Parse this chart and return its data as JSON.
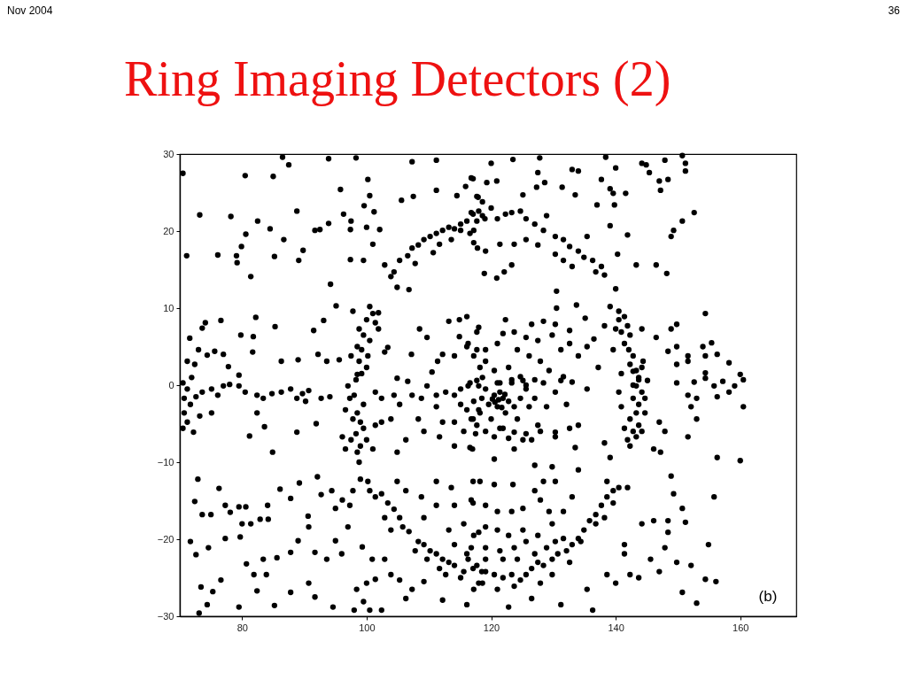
{
  "chart_data": {
    "type": "scatter",
    "title": "Ring Imaging Detectors (2)",
    "annotations": [
      "Nov 2004",
      "36",
      "(b)"
    ],
    "xlim": [
      70,
      169
    ],
    "ylim": [
      -30,
      30
    ],
    "xticks": [
      80,
      100,
      120,
      140,
      160
    ],
    "yticks": [
      -30,
      -20,
      -10,
      0,
      10,
      20,
      30
    ],
    "marker": "circle",
    "series": [
      {
        "color": "#000000",
        "x": [
          103.9,
          104.4,
          102.9,
          105.3,
          106.6,
          107.3,
          108.3,
          109.2,
          110.2,
          111.2,
          112.2,
          113.2,
          114.1,
          115.1,
          116.1,
          117.1,
          118.0,
          119.0,
          115.1,
          116.6,
          107.8,
          110.7,
          111.7,
          113.6,
          117.8,
          104.9,
          106.8,
          116.8,
          117.7,
          118.6,
          120.0,
          121.0,
          122.3,
          123.3,
          124.7,
          125.6,
          127.0,
          128.4,
          128.9,
          130.3,
          131.6,
          132.6,
          134.0,
          134.9,
          136.3,
          137.7,
          138.2,
          136.8,
          133.0,
          135.4,
          117.2,
          119.1,
          121.4,
          123.7,
          125.6,
          127.5,
          130.3,
          131.6,
          117.2,
          100.5,
          101.0,
          100.0,
          101.4,
          98.8,
          99.5,
          100.5,
          98.5,
          99.2,
          100.2,
          98.8,
          100.0,
          99.2,
          98.3,
          97.5,
          101.9,
          101.9,
          98.5,
          97.0,
          98.0,
          97.3,
          99.5,
          98.5,
          96.6,
          97.8,
          99.0,
          99.5,
          98.3,
          97.5,
          99.0,
          101.0,
          96.6,
          98.5,
          96.1,
          100.0,
          101.4,
          98.8
        ],
        "values": [
          14.1,
          14.7,
          15.6,
          16.2,
          16.8,
          17.8,
          18.2,
          18.9,
          19.3,
          19.7,
          20.1,
          20.5,
          20.3,
          20.9,
          21.3,
          22.2,
          22.6,
          21.6,
          20.1,
          19.7,
          15.8,
          17.2,
          18.3,
          18.9,
          17.8,
          12.7,
          12.4,
          22.4,
          21.3,
          22.0,
          23.0,
          21.6,
          22.2,
          22.4,
          22.6,
          21.6,
          20.9,
          20.1,
          22.0,
          19.3,
          18.9,
          18.0,
          17.4,
          16.6,
          16.2,
          15.4,
          14.3,
          14.7,
          15.4,
          19.3,
          18.5,
          17.4,
          18.3,
          18.3,
          18.9,
          18.2,
          17.0,
          16.2,
          20.1,
          10.2,
          9.3,
          8.5,
          8.1,
          7.3,
          6.5,
          5.8,
          5.0,
          4.6,
          3.8,
          3.1,
          2.3,
          1.5,
          0.7,
          3.8,
          7.3,
          9.4,
          1.4,
          -0.1,
          -1.3,
          -1.7,
          -2.5,
          -3.6,
          -3.2,
          -4.4,
          -4.8,
          -5.6,
          -6.3,
          -7.1,
          -7.9,
          -8.3,
          -8.3,
          -8.7,
          -6.7,
          -7.1,
          -5.2,
          -10.0
        ]
      },
      {
        "color": "#000000",
        "x": [
          139.1,
          140.5,
          141.4,
          141.9,
          140.9,
          142.3,
          141.4,
          142.1,
          142.8,
          142.3,
          143.3,
          143.7,
          142.8,
          140.5,
          140.0,
          144.2,
          138.2,
          139.6,
          140.9,
          144.2,
          144.4,
          142.8,
          143.7,
          143.3,
          144.2,
          142.8,
          143.7,
          143.3,
          142.3,
          143.7,
          142.8,
          143.3,
          142.3,
          141.9,
          144.2,
          141.4,
          144.7,
          140.9,
          140.5,
          145.1,
          144.7,
          100.5,
          101.4,
          102.4,
          103.4,
          104.4,
          102.9,
          105.3,
          105.8,
          106.8,
          108.3,
          109.2,
          110.2,
          111.2,
          112.2,
          113.2,
          114.1,
          115.6,
          117.1,
          118.5,
          111.7,
          115.1,
          118.0,
          103.9,
          107.8,
          109.7,
          112.7,
          116.3,
          117.7,
          119.1,
          120.5,
          121.9,
          123.3,
          124.7,
          125.6,
          126.5,
          127.5,
          128.4,
          129.8,
          130.7,
          132.1,
          133.0,
          134.0,
          134.9,
          135.8,
          136.8,
          137.7,
          138.6,
          139.6,
          140.5,
          141.9,
          138.6,
          139.6,
          136.8,
          134.4,
          131.6,
          128.9,
          127.0,
          124.2,
          121.9,
          119.1,
          118.6,
          121.0,
          123.7,
          117.2,
          129.8,
          132.6,
          138.2
        ],
        "values": [
          10.2,
          9.6,
          8.9,
          7.7,
          6.9,
          6.5,
          5.4,
          4.6,
          3.8,
          2.7,
          1.9,
          0.7,
          0.0,
          8.5,
          7.3,
          7.3,
          7.7,
          4.6,
          1.5,
          2.3,
          3.1,
          1.8,
          1.0,
          -0.1,
          -0.9,
          -1.7,
          -2.5,
          -3.6,
          -4.4,
          -5.2,
          -6.0,
          -6.7,
          -7.9,
          -7.1,
          -6.0,
          -5.6,
          -3.6,
          -2.8,
          -0.9,
          0.6,
          -1.7,
          -13.7,
          -14.5,
          -14.1,
          -15.3,
          -16.1,
          -17.2,
          -17.2,
          -18.4,
          -19.0,
          -20.3,
          -20.7,
          -21.5,
          -21.9,
          -22.6,
          -23.0,
          -23.4,
          -24.2,
          -23.8,
          -24.2,
          -23.8,
          -25.0,
          -25.7,
          -18.8,
          -21.5,
          -22.6,
          -24.6,
          -22.6,
          -23.4,
          -24.2,
          -24.6,
          -25.0,
          -24.6,
          -25.3,
          -24.6,
          -23.8,
          -23.0,
          -23.4,
          -22.6,
          -21.9,
          -21.5,
          -20.7,
          -19.9,
          -18.8,
          -17.6,
          -16.8,
          -15.6,
          -14.5,
          -13.7,
          -13.3,
          -13.3,
          -12.5,
          -15.3,
          -18.0,
          -20.3,
          -19.9,
          -21.1,
          -21.9,
          -22.6,
          -22.6,
          -22.6,
          -25.7,
          -26.5,
          -26.1,
          -26.5,
          -24.6,
          -23.0,
          -17.2
        ]
      },
      {
        "color": "#000000",
        "x": [
          116.3,
          117.7,
          119.1,
          120.5,
          121.4,
          121.9,
          122.8,
          121.0,
          119.6,
          118.2,
          117.2,
          120.0,
          122.3,
          123.7,
          124.7,
          125.6,
          126.1,
          123.3,
          125.1,
          121.0,
          118.6,
          121.9,
          124.2,
          125.6,
          127.5,
          128.9,
          130.3,
          128.4,
          127.0,
          131.2,
          132.1,
          132.6,
          134.0,
          135.4,
          130.3,
          127.9,
          126.5,
          125.1,
          123.7,
          122.8,
          121.4,
          120.5,
          119.1,
          117.7,
          116.8,
          121.2,
          120.6,
          122.2,
          121.7,
          120.2,
          116.3,
          117.7,
          119.1,
          120.5,
          121.4,
          122.8,
          123.3,
          124.7,
          125.6,
          127.0,
          101.4,
          102.4,
          104.4,
          105.3,
          107.3,
          108.8,
          109.7,
          111.2,
          112.7,
          114.1,
          115.1,
          116.6,
          118.0,
          118.5,
          115.1,
          116.1,
          117.1,
          114.1,
          115.6,
          118.0,
          111.2,
          108.3,
          109.2,
          106.3,
          103.9,
          102.4,
          112.2,
          114.1,
          116.6,
          104.9,
          111.7,
          117.5,
          108.5,
          109.7,
          113.2,
          114.9,
          116.1,
          118.0,
          114.9,
          116.1,
          112.2,
          114.1,
          111.4,
          110.5,
          104.9,
          106.6,
          103.4,
          102.9,
          107.2
        ],
        "values": [
          -0.1,
          0.6,
          -0.5,
          -1.3,
          -0.9,
          -1.7,
          -2.1,
          -2.8,
          -2.5,
          -3.6,
          -2.1,
          -4.4,
          -3.6,
          -2.8,
          -1.7,
          -0.5,
          -2.8,
          0.3,
          0.6,
          0.3,
          1.0,
          -5.6,
          -4.4,
          -6.3,
          -5.2,
          -2.8,
          -0.9,
          0.3,
          -1.7,
          0.6,
          -2.5,
          -5.6,
          -5.2,
          -0.5,
          -6.7,
          -6.0,
          -7.1,
          -7.1,
          -6.1,
          -6.9,
          -5.6,
          -6.7,
          -6.0,
          -5.2,
          -4.4,
          -1.9,
          -2.2,
          -1.2,
          -2.9,
          -1.8,
          5.4,
          4.6,
          3.1,
          1.9,
          0.3,
          2.3,
          0.7,
          1.1,
          0.0,
          0.7,
          -0.9,
          -1.7,
          -1.3,
          -2.5,
          -1.3,
          -1.7,
          -0.1,
          -1.3,
          -0.9,
          -1.3,
          -0.5,
          0.3,
          -0.1,
          -1.7,
          -2.5,
          -3.2,
          -4.4,
          -4.8,
          -6.0,
          -3.2,
          -2.8,
          -4.4,
          -6.0,
          -7.1,
          -4.4,
          -4.8,
          -4.8,
          -7.9,
          -8.1,
          -8.7,
          -6.7,
          -6.3,
          7.3,
          6.2,
          8.3,
          8.5,
          8.9,
          7.5,
          6.3,
          5.0,
          4.0,
          3.8,
          3.1,
          1.7,
          0.9,
          0.5,
          4.9,
          4.3,
          4.0
        ]
      },
      {
        "color": "#000000",
        "x": [
          122.3,
          126.5,
          128.4,
          130.3,
          132.6,
          121.9,
          123.7,
          125.6,
          127.5,
          129.8,
          131.2,
          132.6,
          134.0,
          117.7,
          119.1,
          121.0,
          124.2,
          126.1,
          127.9,
          129.3,
          131.6,
          133.0,
          118.2,
          117.2,
          135.1,
          135.4,
          136.5,
          137.2,
          117.0,
          120.5,
          123.7,
          127.0,
          129.8,
          134.0,
          138.2,
          139.1,
          133.5,
          130.3,
          70.5,
          71.2,
          71.9,
          70.7,
          71.7,
          72.6,
          73.6,
          75.1,
          76.1,
          77.0,
          78.0,
          79.5,
          80.5,
          82.4,
          83.4,
          84.8,
          86.3,
          87.8,
          89.7,
          90.7,
          92.7,
          94.1,
          70.7,
          71.2,
          70.5,
          72.2,
          73.2,
          75.1,
          82.4,
          81.2,
          83.6,
          84.9,
          88.8,
          91.9,
          88.8,
          90.2
        ],
        "values": [
          8.5,
          7.9,
          8.3,
          7.9,
          7.1,
          6.7,
          6.9,
          6.2,
          5.8,
          6.5,
          4.6,
          5.4,
          3.8,
          6.9,
          4.6,
          5.4,
          4.6,
          3.8,
          3.1,
          1.9,
          1.1,
          0.4,
          2.3,
          3.8,
          8.7,
          5.0,
          6.0,
          2.3,
          -8.3,
          -9.6,
          -8.3,
          -10.4,
          -10.6,
          -11.0,
          -7.5,
          -9.4,
          -8.1,
          -6.1,
          0.3,
          -0.5,
          1.0,
          -1.7,
          -2.5,
          -1.5,
          -0.9,
          -0.5,
          -1.3,
          -0.1,
          0.1,
          -0.1,
          -0.9,
          -1.3,
          -1.7,
          -1.1,
          -0.9,
          -0.5,
          -1.1,
          -0.7,
          -1.7,
          -1.5,
          -3.6,
          -4.8,
          -5.6,
          -6.1,
          -4.0,
          -3.6,
          -3.6,
          -6.6,
          -5.4,
          -8.7,
          -6.1,
          -5.0,
          -1.7,
          -2.1
        ]
      },
      {
        "color": "#000000",
        "x": [
          70.5,
          80.5,
          85.0,
          86.5,
          87.5,
          93.9,
          98.3,
          100.2,
          100.5,
          95.8,
          99.6,
          101.2,
          88.8,
          96.3,
          73.2,
          78.2,
          82.5,
          80.6,
          84.5,
          91.7,
          92.5,
          93.9,
          97.5,
          97.4,
          100.0,
          102.1,
          71.1,
          76.1,
          79.9,
          79.1,
          79.2,
          85.2,
          86.7,
          89.8,
          89.1,
          81.4,
          94.2,
          97.4,
          99.5,
          101.0,
          105.6,
          107.5,
          111.2,
          107.3,
          111.2,
          114.5,
          117.1,
          115.9,
          117.9,
          74.1,
          73.6,
          76.6,
          82.2,
          79.8,
          81.8,
          85.3,
          91.5,
          93.1,
          95.1,
          97.8,
          71.6,
          73.0,
          74.4,
          75.6,
          77.0,
          81.7,
          77.8,
          79.5,
          71.2,
          72.4,
          86.3,
          89.0,
          92.2,
          93.6,
          95.6
        ],
        "values": [
          27.5,
          27.2,
          27.1,
          29.6,
          28.6,
          29.4,
          29.5,
          26.7,
          24.6,
          25.4,
          23.3,
          22.5,
          22.6,
          22.2,
          22.1,
          21.9,
          21.3,
          19.6,
          20.3,
          20.1,
          20.2,
          21.0,
          21.3,
          20.2,
          20.5,
          20.2,
          16.8,
          16.9,
          18.0,
          16.8,
          15.9,
          16.7,
          18.9,
          17.5,
          16.2,
          14.1,
          13.1,
          16.3,
          16.2,
          18.3,
          24.0,
          24.5,
          29.2,
          29.0,
          25.3,
          24.6,
          26.8,
          25.8,
          24.4,
          8.1,
          7.4,
          8.4,
          8.8,
          6.5,
          6.3,
          7.6,
          7.1,
          8.4,
          10.3,
          9.6,
          6.1,
          4.6,
          3.9,
          4.4,
          4.0,
          4.3,
          2.4,
          1.3,
          3.1,
          2.7,
          3.1,
          3.3,
          4.0,
          3.1,
          3.3
        ]
      },
      {
        "color": "#000000",
        "x": [
          120.0,
          123.5,
          127.8,
          133.0,
          134.0,
          137.7,
          138.4,
          140.0,
          144.2,
          144.9,
          147.9,
          150.7,
          151.2,
          151.2,
          145.4,
          147.0,
          148.4,
          147.2,
          141.6,
          139.1,
          139.6,
          137.0,
          139.8,
          133.5,
          131.4,
          127.5,
          128.6,
          127.3,
          125.1,
          120.9,
          119.3,
          116.8,
          117.7,
          118.6,
          152.6,
          150.7,
          149.3,
          148.9,
          141.9,
          143.3,
          146.5,
          148.2,
          139.1,
          140.3,
          140.0,
          130.5,
          130.5,
          133.7,
          122.1,
          118.9,
          120.9,
          123.3,
          154.4,
          148.9,
          149.8,
          146.5,
          148.4,
          149.8,
          151.6,
          154.0,
          154.4,
          155.4,
          156.3,
          158.2,
          160.5,
          157.2,
          154.4,
          152.6,
          151.6,
          149.8
        ],
        "values": [
          28.8,
          29.3,
          29.5,
          28.0,
          27.8,
          26.7,
          29.6,
          28.2,
          28.8,
          28.6,
          29.2,
          29.8,
          28.8,
          27.8,
          27.6,
          26.5,
          26.7,
          25.3,
          24.9,
          25.5,
          24.9,
          23.4,
          23.4,
          24.7,
          25.7,
          27.6,
          26.3,
          25.7,
          24.7,
          26.5,
          26.3,
          26.9,
          24.5,
          23.8,
          22.4,
          21.3,
          20.1,
          19.3,
          19.5,
          15.6,
          15.6,
          14.5,
          20.7,
          17.0,
          12.5,
          12.2,
          10.0,
          10.4,
          14.7,
          14.5,
          13.9,
          15.6,
          9.3,
          7.3,
          7.9,
          6.2,
          4.4,
          5.0,
          3.8,
          5.0,
          3.8,
          5.5,
          4.0,
          2.9,
          0.7,
          0.5,
          0.9,
          0.4,
          3.1,
          2.7
        ]
      },
      {
        "color": "#000000",
        "x": [
          72.9,
          72.4,
          73.6,
          75.0,
          76.3,
          77.3,
          78.1,
          79.5,
          80.6,
          80.0,
          81.4,
          82.9,
          84.2,
          84.1,
          86.1,
          87.8,
          89.2,
          90.6,
          90.7,
          92.1,
          92.7,
          94.4,
          95.0,
          96.1,
          97.3,
          97.8,
          99.0,
          100.2,
          71.7,
          72.6,
          74.6,
          77.3,
          79.7,
          80.7,
          83.4,
          83.9,
          81.9,
          85.6,
          87.8,
          89.0,
          91.7,
          93.6,
          95.0,
          96.0,
          97.0,
          99.3,
          100.9,
          102.9,
          103.9,
          105.3,
          101.4,
          100.0,
          98.4,
          99.5,
          94.6,
          91.7,
          90.7,
          87.8,
          85.2,
          82.4,
          79.5,
          76.6,
          75.3,
          73.4,
          74.4,
          73.1,
          98.0,
          100.5,
          102.4,
          106.3,
          107.3,
          112.2,
          116.1,
          109.2,
          111.2,
          113.6,
          117.1,
          117.1,
          114.1,
          111.2,
          108.8,
          106.3,
          104.9,
          115.6,
          113.2,
          118.0,
          109.2,
          116.1,
          114.1
        ],
        "values": [
          -12.2,
          -15.1,
          -16.8,
          -16.8,
          -13.4,
          -15.6,
          -16.5,
          -15.8,
          -15.8,
          -18.0,
          -18.0,
          -17.4,
          -17.4,
          -15.6,
          -13.5,
          -14.7,
          -12.7,
          -17.0,
          -18.4,
          -11.9,
          -14.2,
          -13.7,
          -16.0,
          -14.9,
          -15.6,
          -13.7,
          -12.2,
          -12.5,
          -20.3,
          -22.0,
          -21.1,
          -19.9,
          -19.7,
          -23.2,
          -22.6,
          -24.6,
          -24.6,
          -22.4,
          -21.7,
          -20.2,
          -21.7,
          -22.6,
          -20.2,
          -21.9,
          -18.4,
          -21.0,
          -22.6,
          -22.6,
          -24.6,
          -25.3,
          -25.2,
          -25.7,
          -26.5,
          -28.1,
          -28.8,
          -27.5,
          -25.7,
          -26.9,
          -28.6,
          -26.7,
          -28.8,
          -25.3,
          -26.8,
          -26.2,
          -28.5,
          -29.6,
          -29.2,
          -29.2,
          -29.2,
          -27.7,
          -26.5,
          -27.9,
          -28.5,
          -25.5,
          -12.5,
          -13.3,
          -12.5,
          -15.3,
          -15.6,
          -15.6,
          -14.5,
          -13.7,
          -12.5,
          -18.0,
          -18.8,
          -19.1,
          -17.2,
          -21.9,
          -20.7
        ]
      },
      {
        "color": "#000000",
        "x": [
          128.4,
          127.0,
          123.5,
          120.5,
          118.2,
          116.8,
          119.1,
          121.0,
          123.3,
          125.1,
          127.9,
          129.3,
          130.3,
          133.0,
          131.6,
          129.8,
          127.5,
          125.1,
          122.8,
          121.0,
          119.1,
          117.2,
          116.8,
          119.1,
          121.4,
          123.7,
          125.6,
          130.3,
          127.9,
          126.5,
          122.8,
          131.2,
          135.4,
          136.3,
          138.6,
          140.0,
          142.3,
          141.4,
          141.4,
          143.7,
          145.6,
          147.0,
          146.1,
          147.9,
          148.4,
          149.8,
          150.7,
          153.0,
          154.4,
          156.1,
          152.1,
          150.7,
          151.2,
          154.9,
          155.8,
          148.9,
          149.3,
          148.4,
          144.2,
          147.0,
          147.9,
          146.1,
          147.2,
          149.8,
          151.6,
          153.0,
          152.1,
          154.4,
          155.8,
          156.3,
          158.2,
          159.1,
          160.0,
          160.5,
          160.0,
          156.3,
          153.0,
          151.6
        ],
        "values": [
          -12.5,
          -13.7,
          -12.9,
          -12.9,
          -12.5,
          -14.9,
          -15.6,
          -16.4,
          -16.4,
          -16.0,
          -14.9,
          -16.4,
          -12.5,
          -14.5,
          -16.4,
          -18.0,
          -19.5,
          -18.8,
          -19.5,
          -18.8,
          -18.4,
          -19.5,
          -21.1,
          -21.1,
          -21.5,
          -21.1,
          -20.3,
          -20.3,
          -25.7,
          -27.7,
          -28.8,
          -28.5,
          -26.5,
          -29.2,
          -24.6,
          -25.7,
          -24.6,
          -21.9,
          -20.7,
          -25.0,
          -22.6,
          -24.2,
          -17.6,
          -21.1,
          -17.6,
          -23.0,
          -26.9,
          -28.3,
          -25.2,
          -25.5,
          -23.4,
          -16.0,
          -17.8,
          -20.7,
          -14.5,
          -11.8,
          -14.1,
          -19.1,
          -18.0,
          -4.8,
          -6.0,
          -8.3,
          -8.7,
          0.3,
          -1.3,
          -1.7,
          -2.8,
          1.6,
          -0.1,
          -1.5,
          -0.9,
          -0.1,
          1.4,
          -2.8,
          -9.8,
          -9.4,
          -4.4,
          -6.7
        ]
      }
    ]
  }
}
